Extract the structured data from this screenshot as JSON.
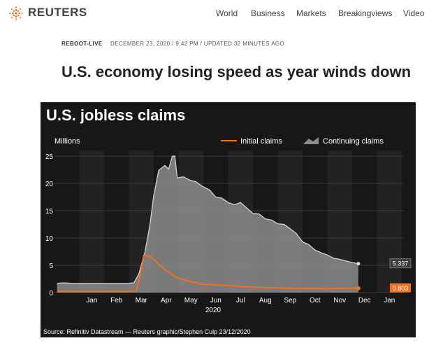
{
  "brand": {
    "name": "REUTERS",
    "accent": "#f36f21"
  },
  "nav": [
    "World",
    "Business",
    "Markets",
    "Breakingviews",
    "Video"
  ],
  "article": {
    "kicker": "REBOOT-LIVE",
    "dateline": "DECEMBER 23, 2020 / 9:42 PM / UPDATED 32 MINUTES AGO",
    "headline": "U.S. economy losing speed as year winds down"
  },
  "chart_data": {
    "type": "area",
    "title": "U.S. jobless claims",
    "ylabel": "Millions",
    "xlabel": "2020",
    "ylim": [
      0,
      25
    ],
    "yticks": [
      0,
      5,
      10,
      15,
      20,
      25
    ],
    "months": [
      "Jan",
      "Feb",
      "Mar",
      "Apr",
      "May",
      "Jun",
      "Jul",
      "Aug",
      "Sep",
      "Oct",
      "Nov",
      "Dec",
      "Jan"
    ],
    "legend": {
      "initial": "Initial claims",
      "continuing": "Continuing claims"
    },
    "series": [
      {
        "name": "Continuing claims",
        "color": "#8c8c8c",
        "end_label": "5.337",
        "points": [
          [
            -0.9,
            1.7
          ],
          [
            -0.6,
            1.8
          ],
          [
            -0.3,
            1.7
          ],
          [
            0,
            1.7
          ],
          [
            1,
            1.7
          ],
          [
            2,
            1.7
          ],
          [
            2.2,
            1.8
          ],
          [
            2.4,
            3.4
          ],
          [
            2.65,
            7.5
          ],
          [
            2.85,
            12.5
          ],
          [
            3.0,
            17.8
          ],
          [
            3.2,
            22.4
          ],
          [
            3.45,
            23.3
          ],
          [
            3.6,
            22.6
          ],
          [
            3.75,
            25.0
          ],
          [
            3.85,
            25.0
          ],
          [
            3.95,
            21.0
          ],
          [
            4.2,
            21.2
          ],
          [
            4.45,
            20.6
          ],
          [
            4.7,
            20.3
          ],
          [
            4.95,
            19.5
          ],
          [
            5.25,
            18.8
          ],
          [
            5.5,
            17.5
          ],
          [
            5.75,
            17.3
          ],
          [
            6.0,
            16.5
          ],
          [
            6.25,
            16.1
          ],
          [
            6.5,
            16.5
          ],
          [
            6.75,
            15.5
          ],
          [
            7.0,
            14.5
          ],
          [
            7.25,
            14.4
          ],
          [
            7.5,
            13.5
          ],
          [
            7.75,
            13.3
          ],
          [
            8.0,
            12.6
          ],
          [
            8.25,
            12.5
          ],
          [
            8.5,
            11.7
          ],
          [
            8.75,
            10.8
          ],
          [
            9.0,
            9.3
          ],
          [
            9.25,
            8.8
          ],
          [
            9.5,
            7.8
          ],
          [
            9.75,
            7.3
          ],
          [
            10.0,
            6.9
          ],
          [
            10.25,
            6.3
          ],
          [
            10.5,
            6.1
          ],
          [
            10.75,
            5.8
          ],
          [
            11.0,
            5.5
          ],
          [
            11.25,
            5.3
          ]
        ]
      },
      {
        "name": "Initial claims",
        "color": "#f36f21",
        "end_label": "0.803",
        "points": [
          [
            -0.9,
            0.2
          ],
          [
            0,
            0.2
          ],
          [
            1,
            0.2
          ],
          [
            2.0,
            0.2
          ],
          [
            2.3,
            0.3
          ],
          [
            2.45,
            3.2
          ],
          [
            2.6,
            6.8
          ],
          [
            2.8,
            6.7
          ],
          [
            3.0,
            6.1
          ],
          [
            3.2,
            5.2
          ],
          [
            3.4,
            4.4
          ],
          [
            3.6,
            3.8
          ],
          [
            3.8,
            3.1
          ],
          [
            4.0,
            2.6
          ],
          [
            4.2,
            2.4
          ],
          [
            4.5,
            2.0
          ],
          [
            4.8,
            1.7
          ],
          [
            5.0,
            1.5
          ],
          [
            5.5,
            1.4
          ],
          [
            6.0,
            1.3
          ],
          [
            6.5,
            1.1
          ],
          [
            7.0,
            1.0
          ],
          [
            7.5,
            0.9
          ],
          [
            8.0,
            0.85
          ],
          [
            8.5,
            0.8
          ],
          [
            9.0,
            0.78
          ],
          [
            9.5,
            0.75
          ],
          [
            10.0,
            0.72
          ],
          [
            10.5,
            0.78
          ],
          [
            11.0,
            0.8
          ],
          [
            11.25,
            0.8
          ]
        ]
      }
    ],
    "source": "Source: Refinitiv Datastream — Reuters graphic/Stephen Culp 23/12/2020"
  }
}
